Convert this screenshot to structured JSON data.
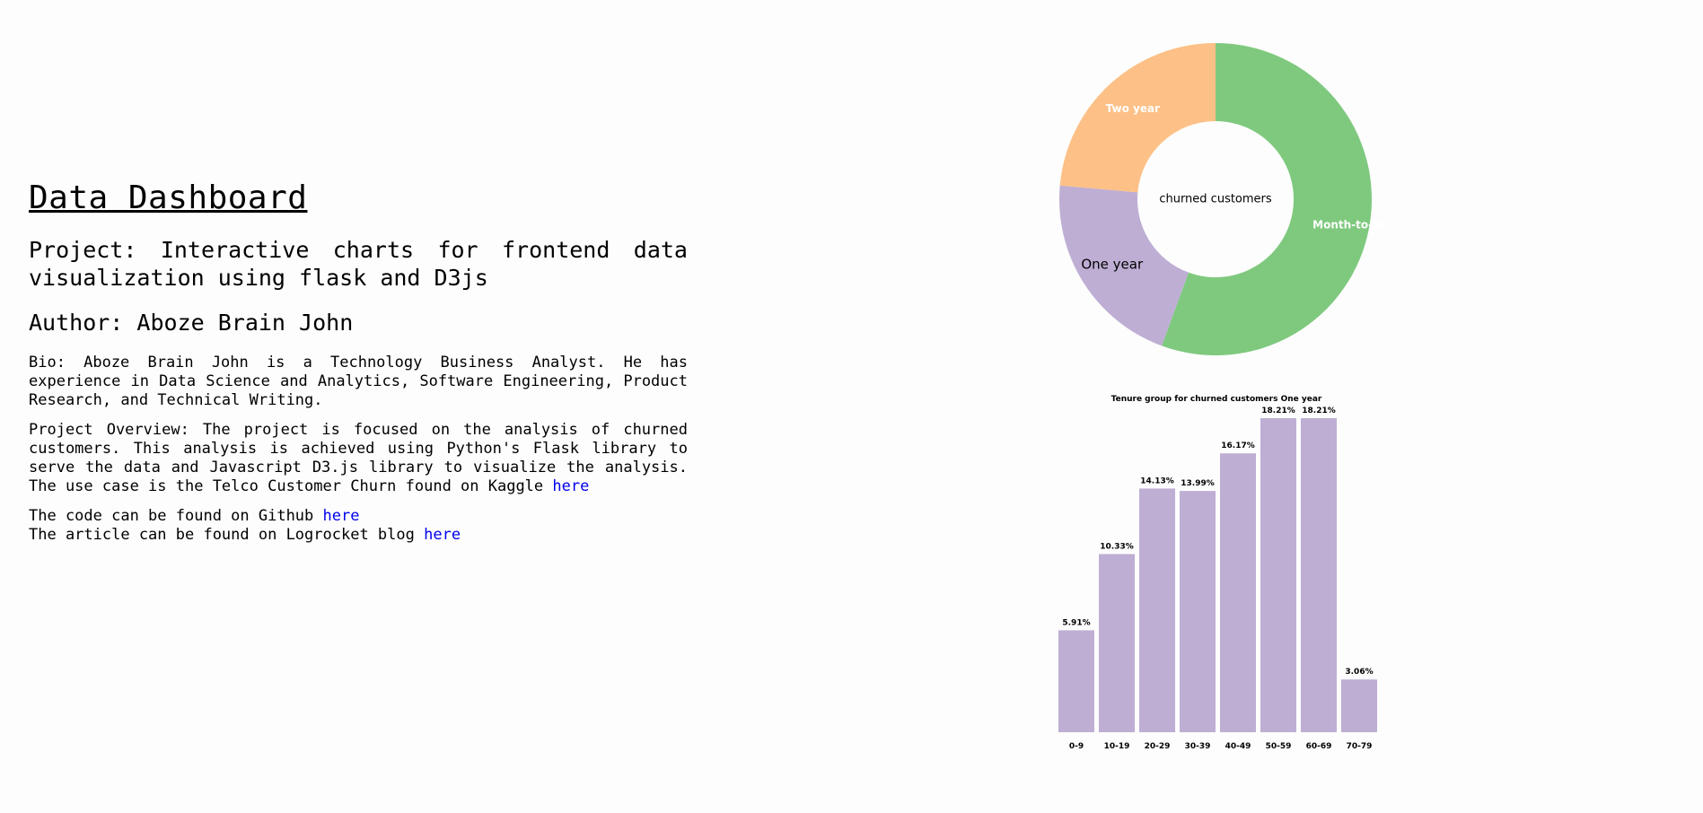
{
  "page": {
    "title": "Data Dashboard",
    "project_label": "Project:",
    "project_text": "Interactive charts for frontend data visualization using flask and D3js",
    "author_label": "Author:",
    "author_name": "Aboze Brain John",
    "bio": "Bio: Aboze Brain John is a Technology Business Analyst. He has experience in Data Science and Analytics, Software Engineering, Product Research, and Technical Writing.",
    "overview": "Project Overview: The project is focused on the analysis of churned customers. This analysis is achieved using Python's Flask library to serve the data and Javascript D3.js library to visualize the analysis. The use case is the Telco Customer Churn found on Kaggle",
    "overview_link": "here",
    "github_text": "The code can be found on Github",
    "github_link": "here",
    "article_text": "The article can be found on Logrocket blog",
    "article_link": "here",
    "link_color": "#0000ee"
  },
  "chart_data": [
    {
      "type": "pie",
      "center_label": "churned customers",
      "slices": [
        {
          "label": "Month-to-month",
          "value": 55.6,
          "color": "#7fc97f",
          "label_color": "#ffffff"
        },
        {
          "label": "One year",
          "value": 20.8,
          "color": "#beaed4",
          "label_color": "#000000"
        },
        {
          "label": "Two year",
          "value": 23.6,
          "color": "#fdc086",
          "label_color": "#ffffff"
        }
      ]
    },
    {
      "type": "bar",
      "title": "Tenure group for churned customers One year",
      "categories": [
        "0-9",
        "10-19",
        "20-29",
        "30-39",
        "40-49",
        "50-59",
        "60-69",
        "70-79"
      ],
      "values": [
        5.91,
        10.33,
        14.13,
        13.99,
        16.17,
        18.21,
        18.21,
        3.06
      ],
      "value_labels": [
        "5.91%",
        "10.33%",
        "14.13%",
        "13.99%",
        "16.17%",
        "18.21%",
        "18.21%",
        "3.06%"
      ],
      "color": "#beaed4",
      "ylim": [
        0,
        18.21
      ]
    }
  ]
}
